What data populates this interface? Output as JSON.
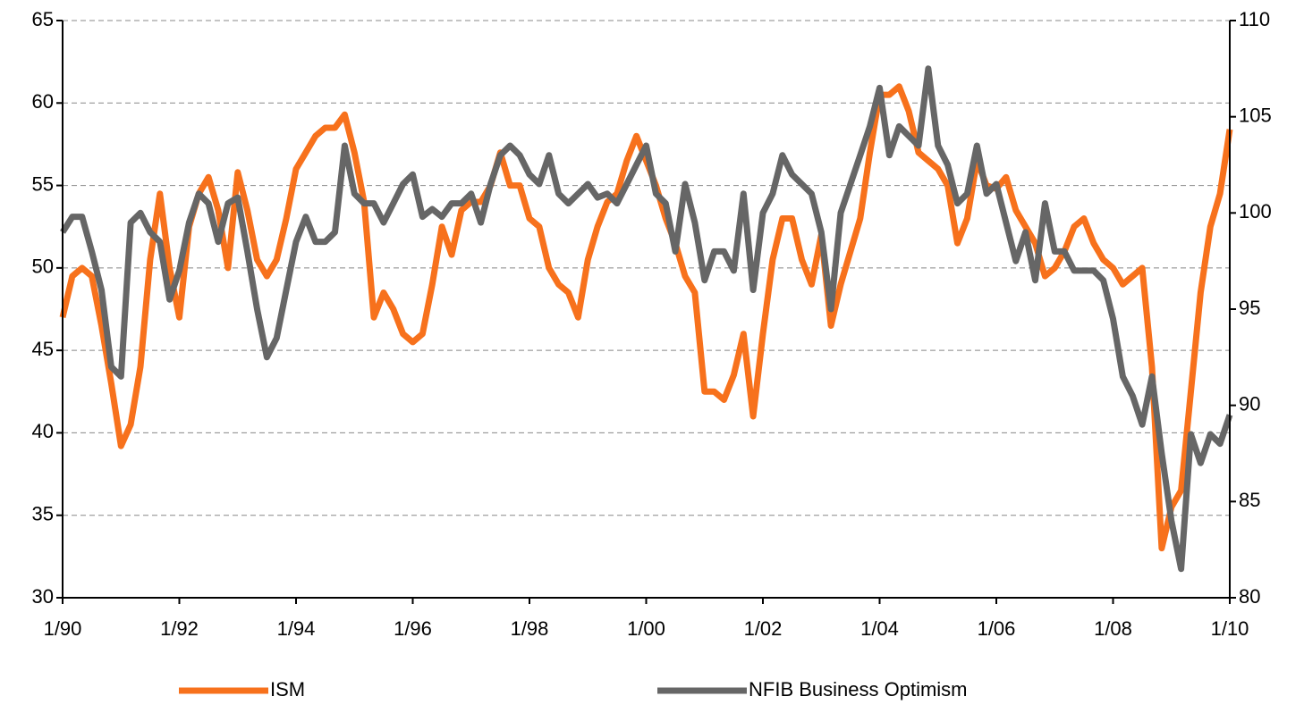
{
  "chart_data": {
    "type": "line",
    "categories": [
      "1/90",
      "3/90",
      "5/90",
      "7/90",
      "9/90",
      "11/90",
      "1/91",
      "3/91",
      "5/91",
      "7/91",
      "9/91",
      "11/91",
      "1/92",
      "3/92",
      "5/92",
      "7/92",
      "9/92",
      "11/92",
      "1/93",
      "3/93",
      "5/93",
      "7/93",
      "9/93",
      "11/93",
      "1/94",
      "3/94",
      "5/94",
      "7/94",
      "9/94",
      "11/94",
      "1/95",
      "3/95",
      "5/95",
      "7/95",
      "9/95",
      "11/95",
      "1/96",
      "3/96",
      "5/96",
      "7/96",
      "9/96",
      "11/96",
      "1/97",
      "3/97",
      "5/97",
      "7/97",
      "9/97",
      "11/97",
      "1/98",
      "3/98",
      "5/98",
      "7/98",
      "9/98",
      "11/98",
      "1/99",
      "3/99",
      "5/99",
      "7/99",
      "9/99",
      "11/99",
      "1/00",
      "3/00",
      "5/00",
      "7/00",
      "9/00",
      "11/00",
      "1/01",
      "3/01",
      "5/01",
      "7/01",
      "9/01",
      "11/01",
      "1/02",
      "3/02",
      "5/02",
      "7/02",
      "9/02",
      "11/02",
      "1/03",
      "3/03",
      "5/03",
      "7/03",
      "9/03",
      "11/03",
      "1/04",
      "3/04",
      "5/04",
      "7/04",
      "9/04",
      "11/04",
      "1/05",
      "3/05",
      "5/05",
      "7/05",
      "9/05",
      "11/05",
      "1/06",
      "3/06",
      "5/06",
      "7/06",
      "9/06",
      "11/06",
      "1/07",
      "3/07",
      "5/07",
      "7/07",
      "9/07",
      "11/07",
      "1/08",
      "3/08",
      "5/08",
      "7/08",
      "9/08",
      "11/08",
      "1/09",
      "3/09",
      "5/09",
      "7/09",
      "9/09",
      "11/09",
      "1/10"
    ],
    "xticks": [
      "1/90",
      "1/92",
      "1/94",
      "1/96",
      "1/98",
      "1/00",
      "1/02",
      "1/04",
      "1/06",
      "1/08",
      "1/10"
    ],
    "series": [
      {
        "name": "ISM",
        "color": "#f7711c",
        "axis": "y",
        "values": [
          47,
          49.5,
          50,
          49.5,
          46.5,
          43,
          39.2,
          40.5,
          44,
          50.5,
          54.5,
          50,
          47,
          52.5,
          54.5,
          55.5,
          53.5,
          50,
          55.8,
          53.5,
          50.5,
          49.5,
          50.5,
          53,
          56,
          57,
          58,
          58.5,
          58.5,
          59.3,
          57,
          54,
          47,
          48.5,
          47.5,
          46,
          45.5,
          46,
          49,
          52.5,
          50.8,
          53.5,
          54,
          54,
          55,
          57,
          55,
          55,
          53,
          52.5,
          50,
          49,
          48.5,
          47,
          50.5,
          52.5,
          54,
          54.5,
          56.5,
          58,
          56.5,
          55,
          53,
          51.5,
          49.5,
          48.5,
          42.5,
          42.5,
          42,
          43.5,
          46,
          41,
          46,
          50.5,
          53,
          53,
          50.5,
          49,
          52,
          46.5,
          49,
          51,
          53,
          57,
          60.5,
          60.5,
          61,
          59.5,
          57,
          56.5,
          56,
          55,
          51.5,
          53,
          56.5,
          55,
          54.8,
          55.5,
          53.5,
          52.5,
          51.5,
          49.5,
          50,
          51,
          52.5,
          53,
          51.5,
          50.5,
          50,
          49,
          49.5,
          50,
          44,
          33,
          35.5,
          36.5,
          42.5,
          48.5,
          52.5,
          54.5,
          58.4
        ]
      },
      {
        "name": "NFIB Business Optimism",
        "color": "#666666",
        "axis": "y2",
        "values": [
          99,
          99.8,
          99.8,
          98,
          96,
          92,
          91.5,
          99.5,
          100,
          99,
          98.5,
          95.5,
          97,
          99.5,
          101,
          100.5,
          98.5,
          100.5,
          100.8,
          98,
          95,
          92.5,
          93.5,
          96,
          98.5,
          99.8,
          98.5,
          98.5,
          99,
          103.5,
          101,
          100.5,
          100.5,
          99.5,
          100.5,
          101.5,
          102,
          99.8,
          100.2,
          99.8,
          100.5,
          100.5,
          101,
          99.5,
          101.5,
          103,
          103.5,
          103,
          102,
          101.5,
          103,
          101,
          100.5,
          101,
          101.5,
          100.8,
          101,
          100.5,
          101.5,
          102.5,
          103.5,
          101,
          100.5,
          98,
          101.5,
          99.5,
          96.5,
          98,
          98,
          97,
          101,
          96,
          100,
          101,
          103,
          102,
          101.5,
          101,
          99,
          95,
          100,
          101.5,
          103,
          104.5,
          106.5,
          103,
          104.5,
          104,
          103.5,
          107.5,
          103.5,
          102.5,
          100.5,
          101,
          103.5,
          101,
          101.5,
          99.5,
          97.5,
          99,
          96.5,
          100.5,
          98,
          98,
          97,
          97,
          97,
          96.5,
          94.5,
          91.5,
          90.5,
          89,
          91.5,
          87.5,
          84,
          81.5,
          88.5,
          87,
          88.5,
          88,
          89.5
        ]
      }
    ],
    "ylim": [
      30,
      65
    ],
    "yticks": [
      30,
      35,
      40,
      45,
      50,
      55,
      60,
      65
    ],
    "y2lim": [
      80,
      110
    ],
    "y2ticks": [
      80,
      85,
      90,
      95,
      100,
      105,
      110
    ],
    "grid": true,
    "legend": "bottom"
  }
}
